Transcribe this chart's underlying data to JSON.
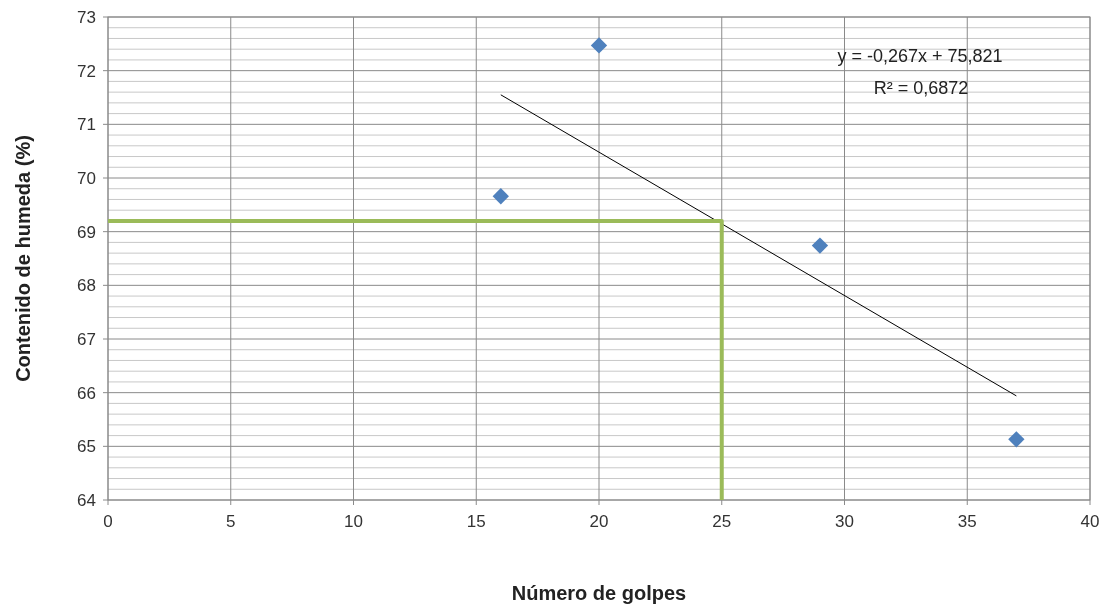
{
  "chart_data": {
    "type": "scatter",
    "xlabel": "Número de golpes",
    "ylabel": "Contenido de humeda (%)",
    "xlim": [
      0,
      40
    ],
    "xticks": [
      0,
      5,
      10,
      15,
      20,
      25,
      30,
      35,
      40
    ],
    "ylim": [
      64,
      73
    ],
    "yticks": [
      64,
      {
        "value": 64.2,
        "label": null
      },
      {
        "value": 64.4,
        "label": null
      },
      {
        "value": 64.6,
        "label": null
      },
      {
        "value": 64.8,
        "label": null
      },
      65,
      {
        "value": 65.2,
        "label": null
      },
      {
        "value": 65.4,
        "label": null
      },
      {
        "value": 65.6,
        "label": null
      },
      {
        "value": 65.8,
        "label": null
      },
      66,
      {
        "value": 66.2,
        "label": null
      },
      {
        "value": 66.4,
        "label": null
      },
      {
        "value": 66.6,
        "label": null
      },
      {
        "value": 66.8,
        "label": null
      },
      67,
      {
        "value": 67.2,
        "label": null
      },
      {
        "value": 67.4,
        "label": null
      },
      {
        "value": 67.6,
        "label": null
      },
      {
        "value": 67.8,
        "label": null
      },
      68,
      {
        "value": 68.2,
        "label": null
      },
      {
        "value": 68.4,
        "label": null
      },
      {
        "value": 68.6,
        "label": null
      },
      {
        "value": 68.8,
        "label": null
      },
      69,
      {
        "value": 69.2,
        "label": null
      },
      {
        "value": 69.4,
        "label": null
      },
      {
        "value": 69.6,
        "label": null
      },
      {
        "value": 69.8,
        "label": null
      },
      70,
      {
        "value": 70.2,
        "label": null
      },
      {
        "value": 70.4,
        "label": null
      },
      {
        "value": 70.6,
        "label": null
      },
      {
        "value": 70.8,
        "label": null
      },
      71,
      {
        "value": 71.2,
        "label": null
      },
      {
        "value": 71.4,
        "label": null
      },
      {
        "value": 71.6,
        "label": null
      },
      {
        "value": 71.8,
        "label": null
      },
      72,
      {
        "value": 72.2,
        "label": null
      },
      {
        "value": 72.4,
        "label": null
      },
      {
        "value": 72.6,
        "label": null
      },
      {
        "value": 72.8,
        "label": null
      },
      73
    ],
    "grid": true,
    "series": [
      {
        "marker": "diamond",
        "color": "#4f81bd",
        "x": [
          16,
          20,
          29,
          37
        ],
        "values": [
          69.66,
          72.47,
          68.74,
          65.13
        ]
      },
      {
        "type": "line",
        "marker": "none",
        "color": "#000000",
        "x": [
          16,
          37
        ],
        "values": [
          71.55,
          65.94
        ]
      },
      {
        "type": "line",
        "marker": "none",
        "color": "#9bbb59",
        "x": [
          0,
          25,
          25
        ],
        "values": [
          69.2,
          69.2,
          64
        ]
      }
    ],
    "annotations": [
      "y = -0,267x + 75,821",
      "R² = 0,6872"
    ]
  }
}
